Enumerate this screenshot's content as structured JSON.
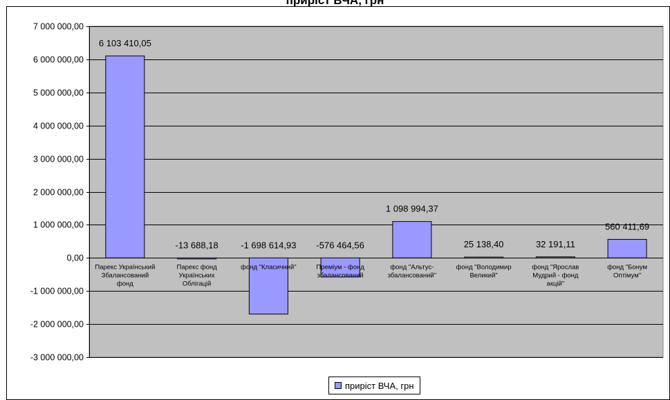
{
  "chart_data": {
    "type": "bar",
    "title": "приріст ВЧА, грн",
    "categories": [
      "Парекс Український Збалансований фонд",
      "Парекс фонд Українських Облігацій",
      "фонд \"Класичний\"",
      "Преміум - фонд збалансований",
      "фонд \"Альтус-збалансований\"",
      "фонд \"Володимир Великий\"",
      "фонд \"Ярослав Мудрий - фонд акцій\"",
      "фонд \"Бонум Оптімум\""
    ],
    "category_lines": [
      [
        "Парекс Український",
        "Збалансований",
        "фонд"
      ],
      [
        "Парекс фонд",
        "Українських",
        "Облігацій"
      ],
      [
        "фонд \"Класичний\""
      ],
      [
        "Преміум - фонд",
        "збалансований"
      ],
      [
        "фонд \"Альтус-",
        "збалансований\""
      ],
      [
        "фонд \"Володимир",
        "Великий\""
      ],
      [
        "фонд \"Ярослав",
        "Мудрий - фонд",
        "акцій\""
      ],
      [
        "фонд \"Бонум",
        "Оптімум\""
      ]
    ],
    "series": [
      {
        "name": "приріст ВЧА, грн",
        "values": [
          6103410.05,
          -13688.18,
          -1698614.93,
          -576464.56,
          1098994.37,
          25138.4,
          32191.11,
          560411.69
        ]
      }
    ],
    "data_labels": [
      "6 103 410,05",
      "-13 688,18",
      "-1 698 614,93",
      "-576 464,56",
      "1 098 994,37",
      "25 138,40",
      "32 191,11",
      "560 411,69"
    ],
    "y_ticks": [
      {
        "value": 7000000,
        "label": "7 000 000,00"
      },
      {
        "value": 6000000,
        "label": "6 000 000,00"
      },
      {
        "value": 5000000,
        "label": "5 000 000,00"
      },
      {
        "value": 4000000,
        "label": "4 000 000,00"
      },
      {
        "value": 3000000,
        "label": "3 000 000,00"
      },
      {
        "value": 2000000,
        "label": "2 000 000,00"
      },
      {
        "value": 1000000,
        "label": "1 000 000,00"
      },
      {
        "value": 0,
        "label": "0,00"
      },
      {
        "value": -1000000,
        "label": "-1 000 000,00"
      },
      {
        "value": -2000000,
        "label": "-2 000 000,00"
      },
      {
        "value": -3000000,
        "label": "-3 000 000,00"
      }
    ],
    "ylim": [
      -3000000,
      7000000
    ],
    "grid": true,
    "legend": "bottom",
    "colors": {
      "plot_bg": "#c0c0c0",
      "bar": "#9999ff",
      "bar_border": "#000000",
      "grid": "#000000"
    }
  }
}
